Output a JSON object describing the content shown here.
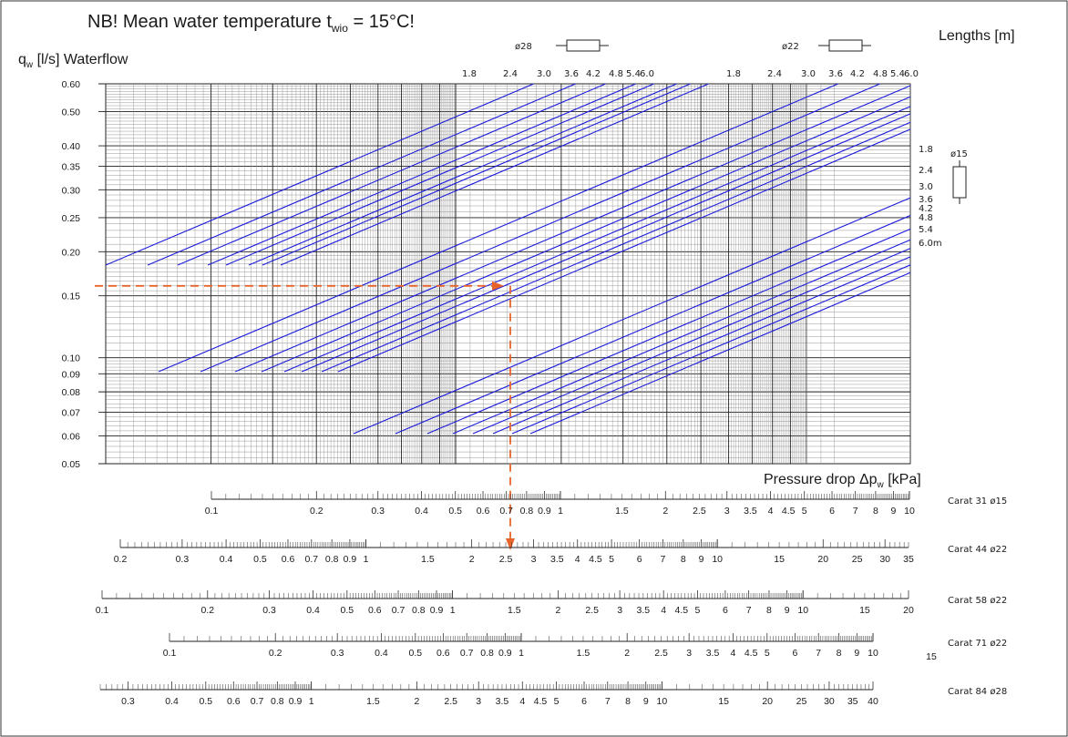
{
  "page": {
    "note_main": "NB! Mean water temperature t",
    "note_sub": "wio",
    "note_end": " = 15°C!",
    "ylabel_main": "q",
    "ylabel_sub": "w",
    "ylabel_end": " [l/s] Waterflow",
    "lengths_label": "Lengths [m]",
    "pressure_label_main": "Pressure drop Δp",
    "pressure_label_sub": "w",
    "pressure_label_end": " [kPa]",
    "pipe_d28": "ø28",
    "pipe_d22": "ø22",
    "pipe_d15": "ø15"
  },
  "chart_data": {
    "type": "line",
    "y_axis": {
      "scale": "log",
      "ylim": [
        0.05,
        0.6
      ],
      "ticks": [
        "0.05",
        "0.06",
        "0.07",
        "0.08",
        "0.09",
        "0.10",
        "0.15",
        "0.20",
        "0.25",
        "0.30",
        "0.35",
        "0.40",
        "0.50",
        "0.60"
      ]
    },
    "length_labels_top_d28": [
      "1.8",
      "2.4",
      "3.0",
      "3.6",
      "4.2",
      "4.8",
      "5.4",
      "6.0"
    ],
    "length_labels_top_d22": [
      "1.8",
      "2.4",
      "3.0",
      "3.6",
      "4.2",
      "4.8",
      "5.4",
      "6.0"
    ],
    "length_labels_right_d15": [
      "1.8",
      "2.4",
      "3.0",
      "3.6",
      "4.2",
      "4.8",
      "5.4",
      "6.0m"
    ],
    "line_groups": [
      {
        "name": "ø28",
        "count": 8
      },
      {
        "name": "ø22",
        "count": 8
      },
      {
        "name": "ø15",
        "count": 8
      }
    ],
    "example": {
      "flow_l_s": 0.16,
      "pressure_drop_kPa_carat44": 2.6
    },
    "scales": [
      {
        "name": "Carat 31",
        "dia": "ø15",
        "labels": [
          "0.1",
          "0.2",
          "0.3",
          "0.4",
          "0.5",
          "0.6",
          "0.7",
          "0.8",
          "0.9",
          "1",
          "1.5",
          "2",
          "2.5",
          "3",
          "3.5",
          "4",
          "4.5",
          "5",
          "6",
          "7",
          "8",
          "9",
          "10"
        ]
      },
      {
        "name": "Carat 44",
        "dia": "ø22",
        "labels": [
          "0.2",
          "0.3",
          "0.4",
          "0.5",
          "0.6",
          "0.7",
          "0.8",
          "0.9",
          "1",
          "1.5",
          "2",
          "2.5",
          "3",
          "3.5",
          "4",
          "4.5",
          "5",
          "6",
          "7",
          "8",
          "9",
          "10",
          "15",
          "20",
          "25",
          "30",
          "35"
        ]
      },
      {
        "name": "Carat 58",
        "dia": "ø22",
        "labels": [
          "0.1",
          "0.2",
          "0.3",
          "0.4",
          "0.5",
          "0.6",
          "0.7",
          "0.8",
          "0.9",
          "1",
          "1.5",
          "2",
          "2.5",
          "3",
          "3.5",
          "4",
          "4.5",
          "5",
          "6",
          "7",
          "8",
          "9",
          "10",
          "15",
          "20"
        ]
      },
      {
        "name": "Carat 71",
        "dia": "ø22",
        "labels": [
          "0.1",
          "0.2",
          "0.3",
          "0.4",
          "0.5",
          "0.6",
          "0.7",
          "0.8",
          "0.9",
          "1",
          "1.5",
          "2",
          "2.5",
          "3",
          "3.5",
          "4",
          "4.5",
          "5",
          "6",
          "7",
          "8",
          "9",
          "10",
          "15"
        ]
      },
      {
        "name": "Carat 84",
        "dia": "ø28",
        "labels": [
          "0.3",
          "0.4",
          "0.5",
          "0.6",
          "0.7",
          "0.8",
          "0.9",
          "1",
          "1.5",
          "2",
          "2.5",
          "3",
          "3.5",
          "4",
          "4.5",
          "5",
          "6",
          "7",
          "8",
          "9",
          "10",
          "15",
          "20",
          "25",
          "30",
          "35",
          "40"
        ]
      }
    ],
    "colors": {
      "lines": "#1a1adc",
      "example": "#e8642a",
      "grid": "#666666"
    }
  }
}
